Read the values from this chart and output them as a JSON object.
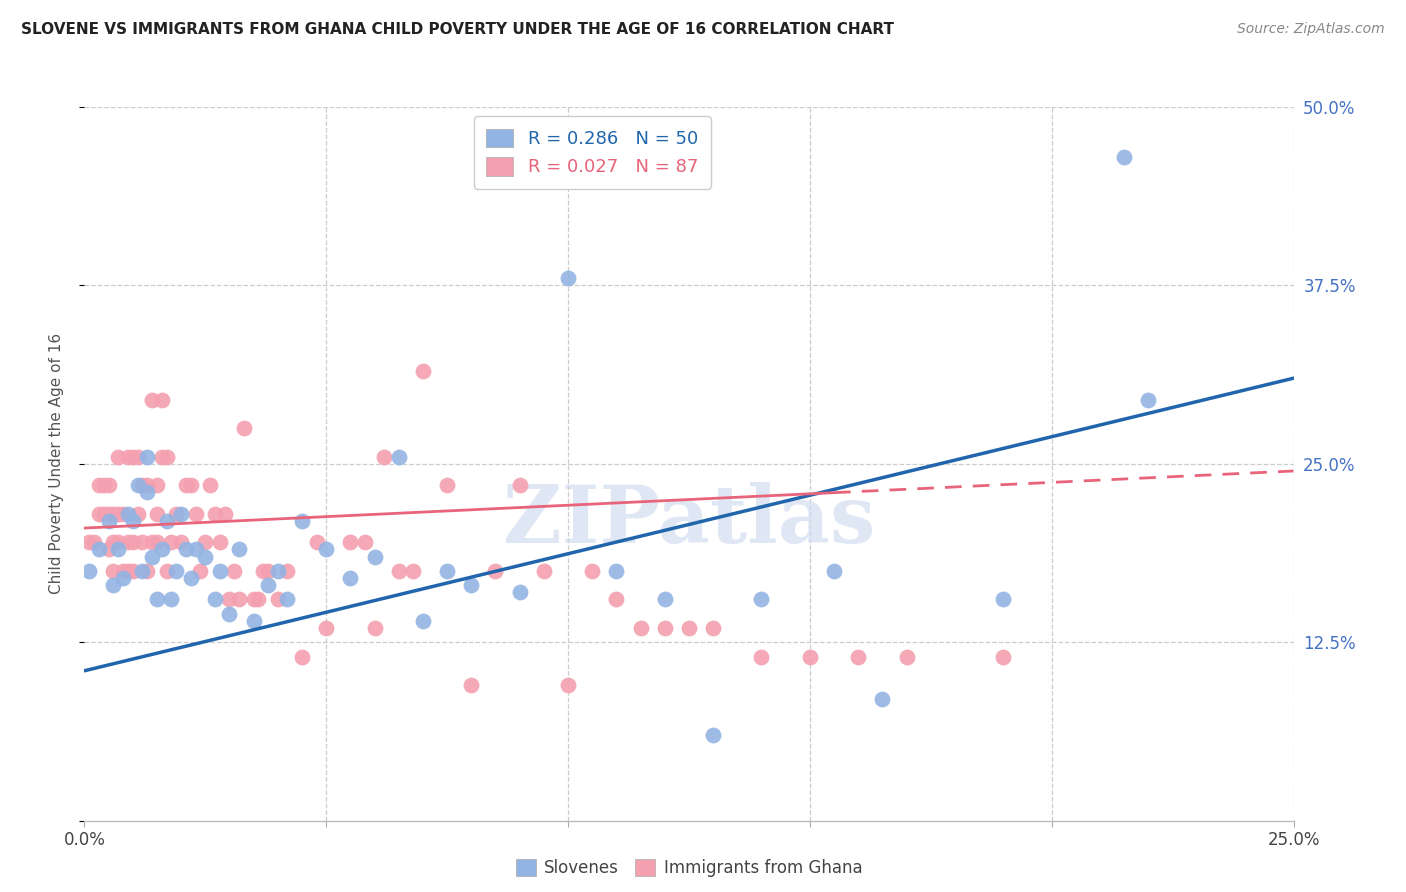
{
  "title": "SLOVENE VS IMMIGRANTS FROM GHANA CHILD POVERTY UNDER THE AGE OF 16 CORRELATION CHART",
  "source": "Source: ZipAtlas.com",
  "ylabel": "Child Poverty Under the Age of 16",
  "xlim": [
    0.0,
    0.25
  ],
  "ylim": [
    0.0,
    0.5
  ],
  "xtick_positions": [
    0.0,
    0.05,
    0.1,
    0.15,
    0.2,
    0.25
  ],
  "xticklabels": [
    "0.0%",
    "",
    "",
    "",
    "",
    "25.0%"
  ],
  "ytick_positions": [
    0.0,
    0.125,
    0.25,
    0.375,
    0.5
  ],
  "yticklabels_right": [
    "",
    "12.5%",
    "25.0%",
    "37.5%",
    "50.0%"
  ],
  "blue_R": 0.286,
  "blue_N": 50,
  "pink_R": 0.027,
  "pink_N": 87,
  "blue_color": "#92b4e3",
  "pink_color": "#f4a0b0",
  "blue_line_color": "#2166ac",
  "pink_line_color": "#e8647a",
  "pink_line_solid_end": 0.155,
  "blue_x": [
    0.001,
    0.003,
    0.005,
    0.006,
    0.007,
    0.008,
    0.009,
    0.01,
    0.011,
    0.012,
    0.013,
    0.013,
    0.014,
    0.015,
    0.016,
    0.017,
    0.018,
    0.019,
    0.02,
    0.021,
    0.022,
    0.023,
    0.025,
    0.027,
    0.028,
    0.03,
    0.032,
    0.035,
    0.038,
    0.04,
    0.042,
    0.045,
    0.05,
    0.055,
    0.06,
    0.065,
    0.07,
    0.075,
    0.08,
    0.09,
    0.1,
    0.11,
    0.12,
    0.13,
    0.14,
    0.155,
    0.165,
    0.19,
    0.215,
    0.22
  ],
  "blue_y": [
    0.175,
    0.19,
    0.21,
    0.165,
    0.19,
    0.17,
    0.215,
    0.21,
    0.235,
    0.175,
    0.23,
    0.255,
    0.185,
    0.155,
    0.19,
    0.21,
    0.155,
    0.175,
    0.215,
    0.19,
    0.17,
    0.19,
    0.185,
    0.155,
    0.175,
    0.145,
    0.19,
    0.14,
    0.165,
    0.175,
    0.155,
    0.21,
    0.19,
    0.17,
    0.185,
    0.255,
    0.14,
    0.175,
    0.165,
    0.16,
    0.38,
    0.175,
    0.155,
    0.06,
    0.155,
    0.175,
    0.085,
    0.155,
    0.465,
    0.295
  ],
  "pink_x": [
    0.001,
    0.002,
    0.003,
    0.003,
    0.004,
    0.004,
    0.005,
    0.005,
    0.005,
    0.006,
    0.006,
    0.006,
    0.007,
    0.007,
    0.007,
    0.008,
    0.008,
    0.009,
    0.009,
    0.009,
    0.01,
    0.01,
    0.01,
    0.011,
    0.011,
    0.012,
    0.012,
    0.013,
    0.013,
    0.014,
    0.014,
    0.015,
    0.015,
    0.015,
    0.016,
    0.016,
    0.017,
    0.017,
    0.018,
    0.019,
    0.02,
    0.021,
    0.022,
    0.023,
    0.024,
    0.025,
    0.026,
    0.027,
    0.028,
    0.029,
    0.03,
    0.031,
    0.032,
    0.033,
    0.035,
    0.036,
    0.037,
    0.038,
    0.04,
    0.042,
    0.045,
    0.048,
    0.05,
    0.055,
    0.058,
    0.06,
    0.062,
    0.065,
    0.068,
    0.07,
    0.075,
    0.08,
    0.085,
    0.09,
    0.095,
    0.1,
    0.105,
    0.11,
    0.115,
    0.12,
    0.125,
    0.13,
    0.14,
    0.15,
    0.16,
    0.17,
    0.19
  ],
  "pink_y": [
    0.195,
    0.195,
    0.215,
    0.235,
    0.215,
    0.235,
    0.19,
    0.215,
    0.235,
    0.175,
    0.195,
    0.215,
    0.195,
    0.215,
    0.255,
    0.175,
    0.215,
    0.175,
    0.195,
    0.255,
    0.175,
    0.195,
    0.255,
    0.215,
    0.255,
    0.195,
    0.235,
    0.175,
    0.235,
    0.195,
    0.295,
    0.195,
    0.215,
    0.235,
    0.255,
    0.295,
    0.175,
    0.255,
    0.195,
    0.215,
    0.195,
    0.235,
    0.235,
    0.215,
    0.175,
    0.195,
    0.235,
    0.215,
    0.195,
    0.215,
    0.155,
    0.175,
    0.155,
    0.275,
    0.155,
    0.155,
    0.175,
    0.175,
    0.155,
    0.175,
    0.115,
    0.195,
    0.135,
    0.195,
    0.195,
    0.135,
    0.255,
    0.175,
    0.175,
    0.315,
    0.235,
    0.095,
    0.175,
    0.235,
    0.175,
    0.095,
    0.175,
    0.155,
    0.135,
    0.135,
    0.135,
    0.135,
    0.115,
    0.115,
    0.115,
    0.115,
    0.115
  ],
  "blue_line_x0": 0.0,
  "blue_line_y0": 0.105,
  "blue_line_x1": 0.25,
  "blue_line_y1": 0.31,
  "pink_line_x0": 0.0,
  "pink_line_y0": 0.205,
  "pink_line_x1": 0.25,
  "pink_line_y1": 0.245
}
